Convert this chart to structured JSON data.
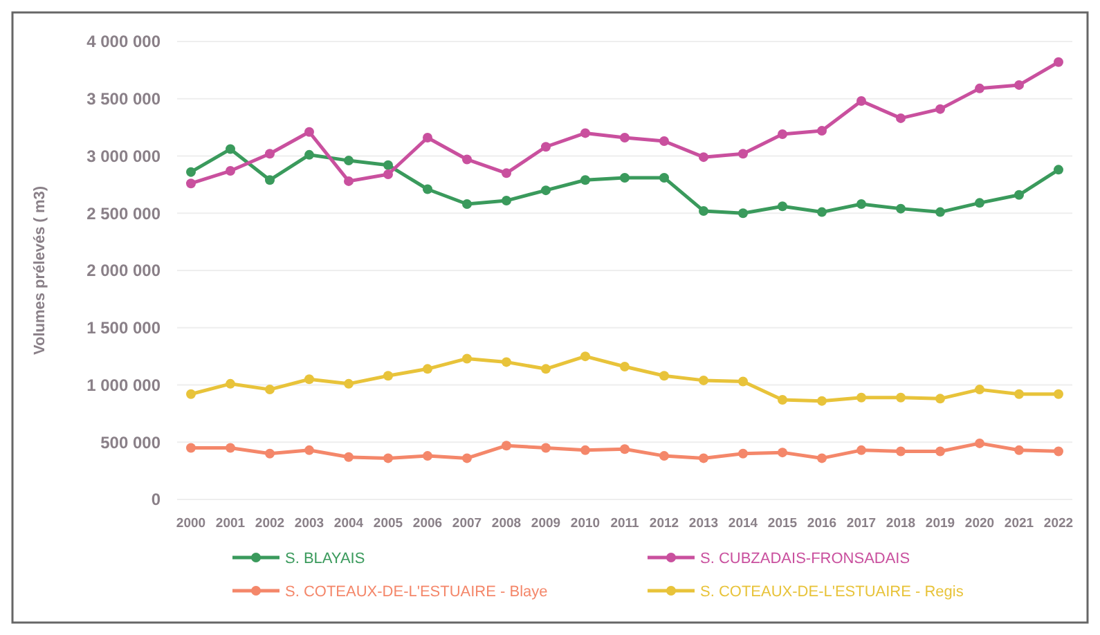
{
  "chart_data": {
    "type": "line",
    "ylabel": "Volumes prélevés ( m3)",
    "categories": [
      "2000",
      "2001",
      "2002",
      "2003",
      "2004",
      "2005",
      "2006",
      "2007",
      "2008",
      "2009",
      "2010",
      "2011",
      "2012",
      "2013",
      "2014",
      "2015",
      "2016",
      "2017",
      "2018",
      "2019",
      "2020",
      "2021",
      "2022"
    ],
    "ylim": [
      0,
      4000000
    ],
    "yticks": [
      {
        "value": 0,
        "label": "0"
      },
      {
        "value": 500000,
        "label": "500 000"
      },
      {
        "value": 1000000,
        "label": "1 000 000"
      },
      {
        "value": 1500000,
        "label": "1 500 000"
      },
      {
        "value": 2000000,
        "label": "2 000 000"
      },
      {
        "value": 2500000,
        "label": "2 500 000"
      },
      {
        "value": 3000000,
        "label": "3 000 000"
      },
      {
        "value": 3500000,
        "label": "3 500 000"
      },
      {
        "value": 4000000,
        "label": "4 000 000"
      }
    ],
    "grid": "y",
    "legend": "bottom",
    "marker": "circle",
    "line_style": "solid",
    "series": [
      {
        "name": "S. BLAYAIS",
        "color": "#3a9a5c",
        "values": [
          2860000,
          3060000,
          2790000,
          3010000,
          2960000,
          2920000,
          2710000,
          2580000,
          2610000,
          2700000,
          2790000,
          2810000,
          2810000,
          2520000,
          2500000,
          2560000,
          2510000,
          2580000,
          2540000,
          2510000,
          2590000,
          2660000,
          2880000
        ]
      },
      {
        "name": "S. CUBZADAIS-FRONSADAIS",
        "color": "#c9509e",
        "values": [
          2760000,
          2870000,
          3020000,
          3210000,
          2780000,
          2840000,
          3160000,
          2970000,
          2850000,
          3080000,
          3200000,
          3160000,
          3130000,
          2990000,
          3020000,
          3190000,
          3220000,
          3480000,
          3330000,
          3410000,
          3590000,
          3620000,
          3820000
        ]
      },
      {
        "name": "S. COTEAUX-DE-L'ESTUAIRE - Blaye",
        "color": "#f4876a",
        "values": [
          450000,
          450000,
          400000,
          430000,
          370000,
          360000,
          380000,
          360000,
          470000,
          450000,
          430000,
          440000,
          380000,
          360000,
          400000,
          410000,
          360000,
          430000,
          420000,
          420000,
          490000,
          430000,
          420000
        ]
      },
      {
        "name": "S. COTEAUX-DE-L'ESTUAIRE - Regis",
        "color": "#e8c33a",
        "values": [
          920000,
          1010000,
          960000,
          1050000,
          1010000,
          1080000,
          1140000,
          1230000,
          1200000,
          1140000,
          1250000,
          1160000,
          1080000,
          1040000,
          1030000,
          870000,
          860000,
          890000,
          890000,
          880000,
          960000,
          920000,
          920000
        ]
      }
    ]
  }
}
